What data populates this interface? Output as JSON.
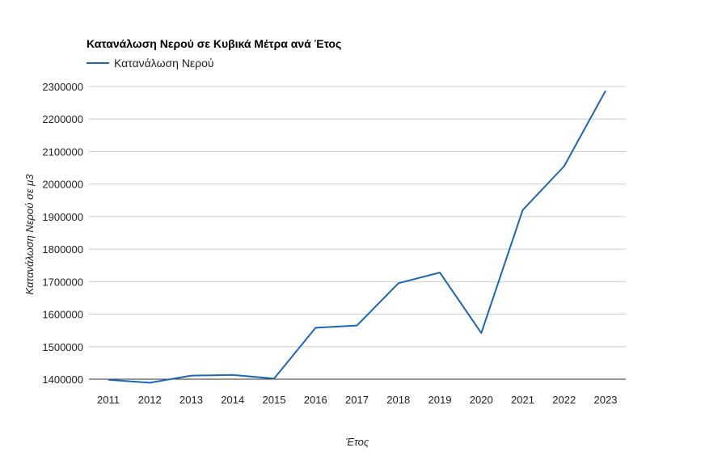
{
  "chart_data": {
    "type": "line",
    "title": "Κατανάλωση Νερού σε Κυβικά Μέτρα ανά Έτος",
    "xlabel": "Έτος",
    "ylabel": "Κατανάλωση Νερού σε μ3",
    "categories": [
      "2011",
      "2012",
      "2013",
      "2014",
      "2015",
      "2016",
      "2017",
      "2018",
      "2019",
      "2020",
      "2021",
      "2022",
      "2023"
    ],
    "series": [
      {
        "name": "Κατανάλωση Νερού",
        "color": "#1a67b6",
        "values": [
          1398000,
          1389000,
          1411000,
          1413000,
          1402000,
          1558000,
          1565000,
          1695000,
          1728000,
          1542000,
          1920000,
          2055000,
          2287000
        ]
      }
    ],
    "ylim": [
      1400000,
      2300000
    ],
    "yticks": [
      1400000,
      1500000,
      1600000,
      1700000,
      1800000,
      1900000,
      2000000,
      2100000,
      2200000,
      2300000
    ],
    "grid": true,
    "legend": "top-left"
  }
}
